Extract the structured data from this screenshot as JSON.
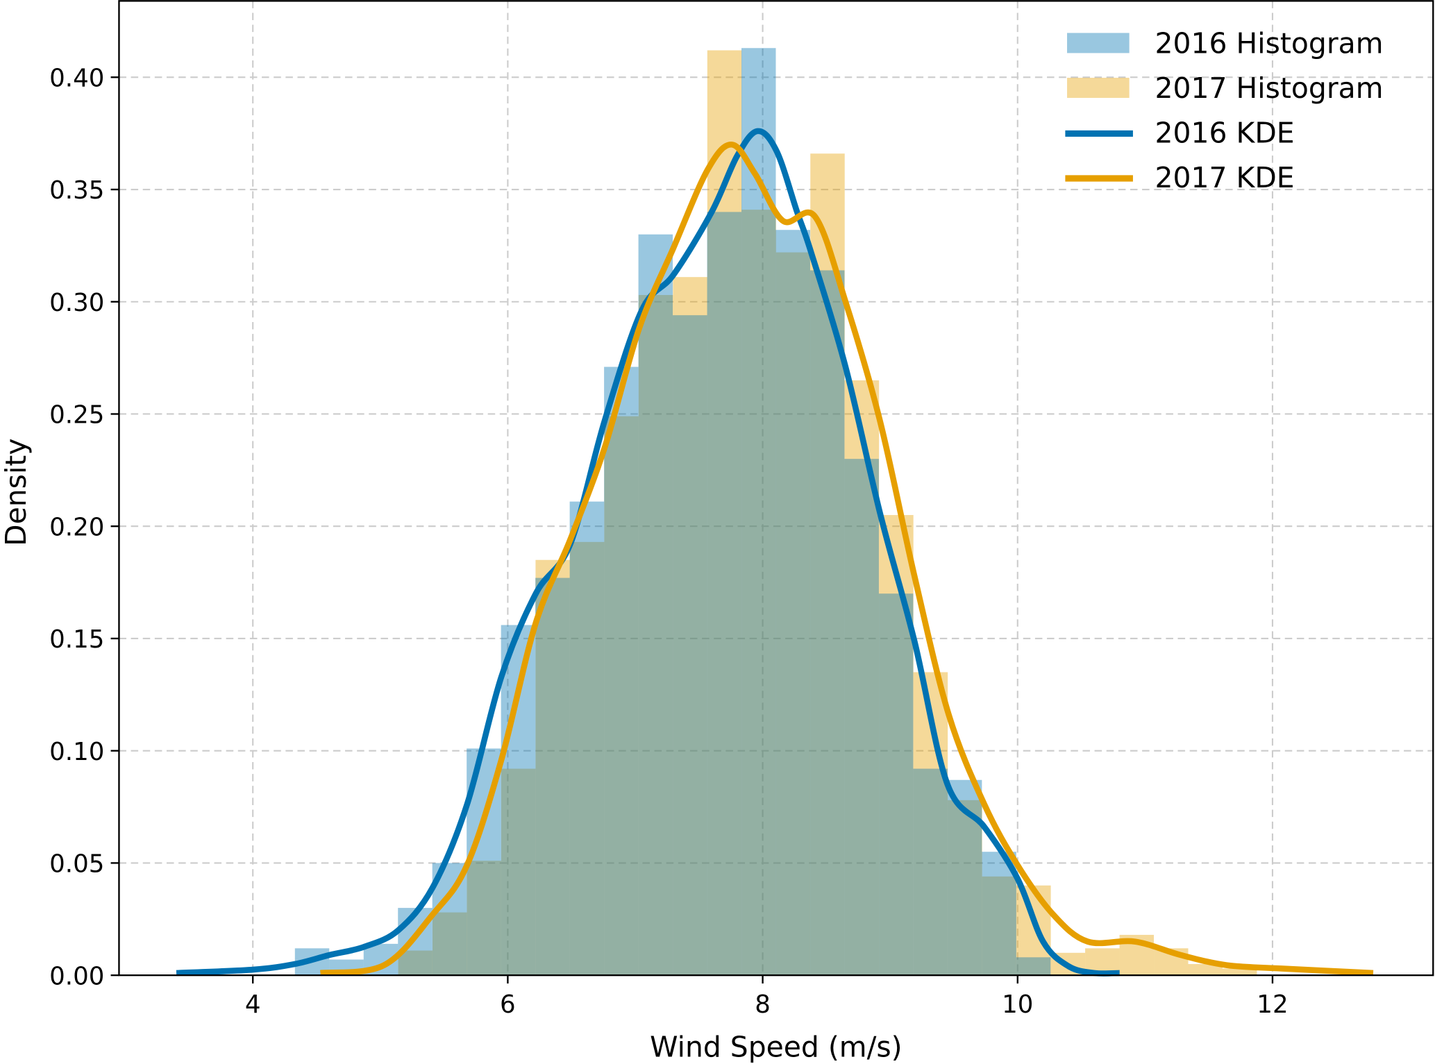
{
  "chart_data": {
    "type": "bar",
    "title": "",
    "xlabel": "Wind Speed (m/s)",
    "ylabel": "Density",
    "xlim": [
      2.95,
      13.26
    ],
    "ylim": [
      0,
      0.434
    ],
    "grid": true,
    "legend_position": "top-right",
    "xticks": [
      4,
      6,
      8,
      10,
      12
    ],
    "xtick_labels": [
      "4",
      "6",
      "8",
      "10",
      "12"
    ],
    "yticks": [
      0,
      0.05,
      0.1,
      0.15,
      0.2,
      0.25,
      0.3,
      0.35,
      0.4
    ],
    "ytick_labels": [
      "0.00",
      "0.05",
      "0.10",
      "0.15",
      "0.20",
      "0.25",
      "0.30",
      "0.35",
      "0.40"
    ],
    "colors": {
      "2016": "#0072B2",
      "2017": "#E69F00"
    },
    "histograms": [
      {
        "name": "2016 Histogram",
        "color": "#0072B2",
        "bin_start": 4.33,
        "bin_width": 0.2695,
        "values": [
          0.012,
          0.007,
          0.014,
          0.03,
          0.05,
          0.101,
          0.156,
          0.177,
          0.211,
          0.271,
          0.33,
          0.294,
          0.34,
          0.413,
          0.332,
          0.314,
          0.23,
          0.17,
          0.092,
          0.087,
          0.055,
          0.008
        ]
      },
      {
        "name": "2017 Histogram",
        "color": "#E69F00",
        "bin_start": 5.14,
        "bin_width": 0.2695,
        "values": [
          0.011,
          0.028,
          0.051,
          0.092,
          0.185,
          0.193,
          0.249,
          0.303,
          0.311,
          0.412,
          0.341,
          0.322,
          0.366,
          0.265,
          0.205,
          0.135,
          0.078,
          0.044,
          0.04,
          0.01,
          0.012,
          0.018,
          0.012,
          0.005,
          0.003
        ]
      }
    ],
    "kde": [
      {
        "name": "2016 KDE",
        "color": "#0072B2",
        "x": [
          3.4,
          4.0,
          4.33,
          4.6,
          4.87,
          5.14,
          5.41,
          5.68,
          5.95,
          6.22,
          6.49,
          6.76,
          7.05,
          7.3,
          7.6,
          7.8,
          7.96,
          8.11,
          8.27,
          8.38,
          8.65,
          8.92,
          9.19,
          9.45,
          9.74,
          10.0,
          10.2,
          10.4,
          10.6,
          10.8
        ],
        "y": [
          0.001,
          0.0025,
          0.005,
          0.009,
          0.0126,
          0.02,
          0.039,
          0.076,
          0.133,
          0.17,
          0.192,
          0.247,
          0.296,
          0.312,
          0.34,
          0.365,
          0.376,
          0.367,
          0.34,
          0.322,
          0.271,
          0.206,
          0.149,
          0.085,
          0.066,
          0.043,
          0.015,
          0.004,
          0.001,
          0.001
        ]
      },
      {
        "name": "2017 KDE",
        "color": "#E69F00",
        "x": [
          4.53,
          5.03,
          5.41,
          5.68,
          5.95,
          6.22,
          6.49,
          6.76,
          7.03,
          7.3,
          7.57,
          7.76,
          7.94,
          8.16,
          8.41,
          8.65,
          8.92,
          9.19,
          9.46,
          9.74,
          10.0,
          10.28,
          10.55,
          10.92,
          11.28,
          11.64,
          12.07,
          12.79
        ],
        "y": [
          0.001,
          0.0045,
          0.027,
          0.049,
          0.096,
          0.157,
          0.194,
          0.235,
          0.288,
          0.324,
          0.359,
          0.37,
          0.357,
          0.336,
          0.338,
          0.3,
          0.247,
          0.178,
          0.116,
          0.076,
          0.049,
          0.027,
          0.015,
          0.015,
          0.009,
          0.0045,
          0.003,
          0.001
        ]
      }
    ]
  }
}
